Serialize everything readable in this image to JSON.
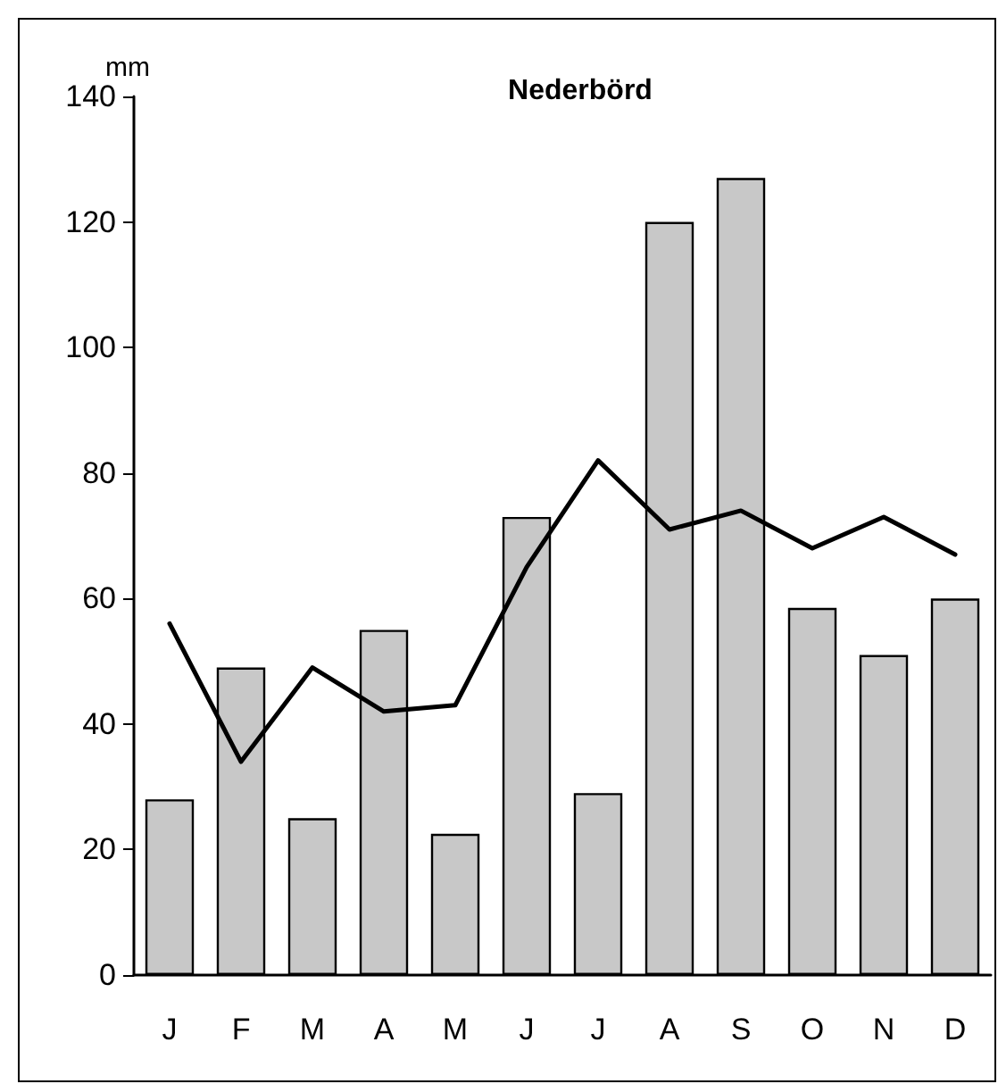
{
  "chart_data": {
    "type": "bar",
    "title": "Nederbörd",
    "ylabel": "mm",
    "categories": [
      "J",
      "F",
      "M",
      "A",
      "M",
      "J",
      "J",
      "A",
      "S",
      "O",
      "N",
      "D"
    ],
    "series": [
      {
        "type": "bar",
        "color": "#c8c8c8",
        "values": [
          28,
          49,
          25,
          55,
          22.5,
          73,
          29,
          120,
          127,
          58.5,
          51,
          60
        ]
      },
      {
        "type": "line",
        "color": "#000000",
        "values": [
          56,
          34,
          49,
          42,
          43,
          65,
          82,
          71,
          74,
          68,
          73,
          67
        ]
      }
    ],
    "ylim": [
      0,
      140
    ],
    "yticks": [
      0,
      20,
      40,
      60,
      80,
      100,
      120,
      140
    ],
    "grid": false,
    "marker": "none",
    "line_style": "solid"
  }
}
